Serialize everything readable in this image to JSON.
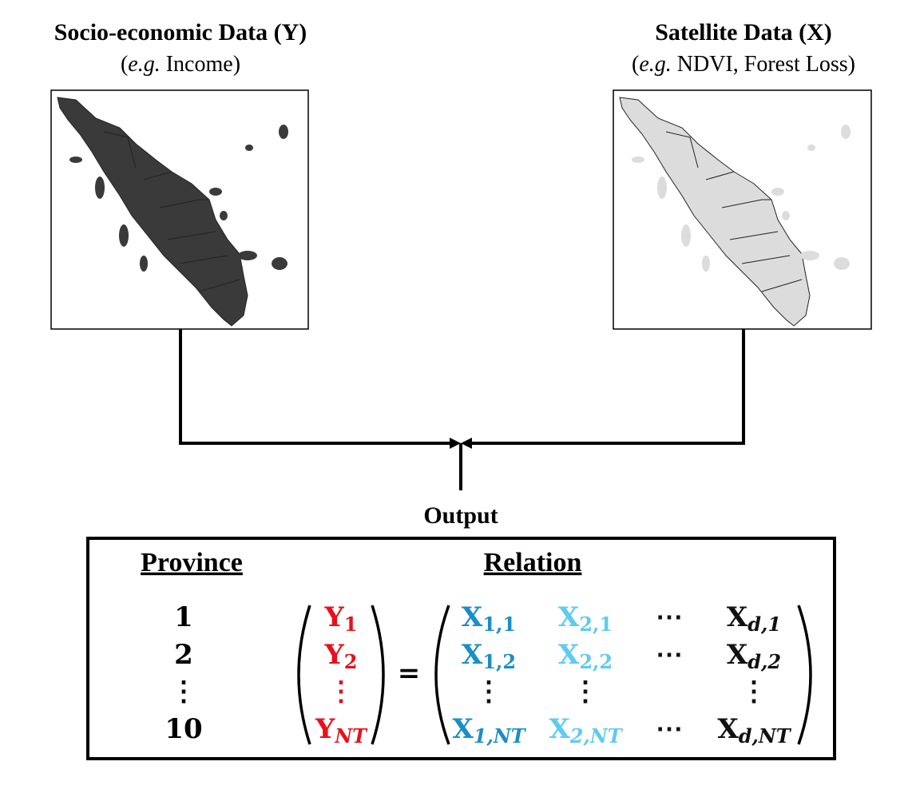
{
  "left": {
    "title": "Socio-economic Data (Y)",
    "subtitle": [
      "(",
      "e.g.",
      " Income)"
    ]
  },
  "right": {
    "title": "Satellite Data (X)",
    "subtitle": [
      "(",
      "e.g.",
      " NDVI, Forest Loss)"
    ]
  },
  "output": "Output",
  "table": {
    "headers": [
      "Province",
      "Relation"
    ],
    "provinces": [
      "1",
      "2",
      "⋮",
      "10"
    ],
    "y_vector": [
      {
        "base": "Y",
        "sub": "1"
      },
      {
        "base": "Y",
        "sub": "2"
      },
      {
        "base": "⋮"
      },
      {
        "base": "Y",
        "sub": "NT"
      }
    ],
    "equals": "=",
    "x_matrix": [
      [
        {
          "base": "X",
          "sub": "1,1"
        },
        {
          "base": "X",
          "sub": "2,1"
        },
        {
          "base": "⋯"
        },
        {
          "base": "X",
          "sub": "d,1"
        }
      ],
      [
        {
          "base": "X",
          "sub": "1,2"
        },
        {
          "base": "X",
          "sub": "2,2"
        },
        {
          "base": "⋯"
        },
        {
          "base": "X",
          "sub": "d,2"
        }
      ],
      [
        {
          "base": "⋮"
        },
        {
          "base": "⋮"
        },
        {
          "base": "⋮"
        }
      ],
      [
        {
          "base": "X",
          "sub": "1,NT"
        },
        {
          "base": "X",
          "sub": "2,NT"
        },
        {
          "base": "⋯"
        },
        {
          "base": "X",
          "sub": "d,NT"
        }
      ]
    ]
  }
}
